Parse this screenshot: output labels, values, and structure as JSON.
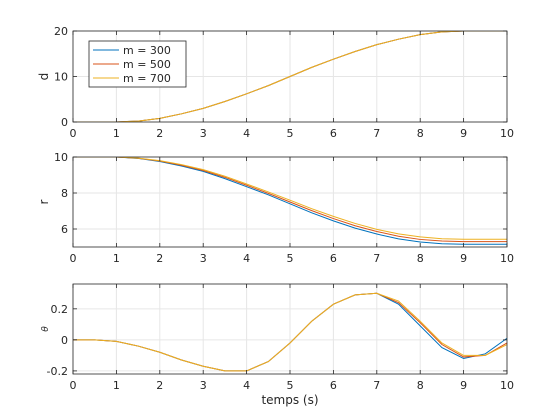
{
  "chart_data": [
    {
      "type": "line",
      "ylabel": "d",
      "xlabel": "",
      "xlim": [
        0,
        10
      ],
      "ylim": [
        0,
        20
      ],
      "xticks": [
        "0",
        "1",
        "2",
        "3",
        "4",
        "5",
        "6",
        "7",
        "8",
        "9",
        "10"
      ],
      "yticks": [
        "0",
        "10",
        "20"
      ],
      "grid": true,
      "legend": {
        "placement": "top-left",
        "entries": [
          "m = 300",
          "m = 500",
          "m = 700"
        ]
      },
      "x": [
        0,
        0.5,
        1,
        1.5,
        2,
        2.5,
        3,
        3.5,
        4,
        4.5,
        5,
        5.5,
        6,
        6.5,
        7,
        7.5,
        8,
        8.5,
        9,
        9.5,
        10
      ],
      "series": [
        {
          "name": "m = 300",
          "color": "#0072bd",
          "values": [
            0,
            0,
            0,
            0.2,
            0.8,
            1.8,
            3.0,
            4.5,
            6.2,
            8.0,
            10.0,
            12.0,
            13.8,
            15.5,
            17.0,
            18.2,
            19.2,
            19.8,
            20,
            20,
            20
          ]
        },
        {
          "name": "m = 500",
          "color": "#d95319",
          "values": [
            0,
            0,
            0,
            0.2,
            0.8,
            1.8,
            3.0,
            4.5,
            6.2,
            8.0,
            10.0,
            12.0,
            13.8,
            15.5,
            17.0,
            18.2,
            19.2,
            19.8,
            20,
            20,
            20
          ]
        },
        {
          "name": "m = 700",
          "color": "#edb120",
          "values": [
            0,
            0,
            0,
            0.2,
            0.8,
            1.8,
            3.0,
            4.5,
            6.2,
            8.0,
            10.0,
            12.0,
            13.8,
            15.5,
            17.0,
            18.2,
            19.2,
            19.8,
            20,
            20,
            20
          ]
        }
      ]
    },
    {
      "type": "line",
      "ylabel": "r",
      "xlabel": "",
      "xlim": [
        0,
        10
      ],
      "ylim": [
        5,
        10
      ],
      "xticks": [
        "0",
        "1",
        "2",
        "3",
        "4",
        "5",
        "6",
        "7",
        "8",
        "9",
        "10"
      ],
      "yticks": [
        "6",
        "8",
        "10"
      ],
      "grid": true,
      "x": [
        0,
        0.5,
        1,
        1.5,
        2,
        2.5,
        3,
        3.5,
        4,
        4.5,
        5,
        5.5,
        6,
        6.5,
        7,
        7.5,
        8,
        8.5,
        9,
        9.5,
        10
      ],
      "series": [
        {
          "name": "m = 300",
          "color": "#0072bd",
          "values": [
            10,
            10,
            10,
            9.92,
            9.75,
            9.5,
            9.2,
            8.8,
            8.35,
            7.9,
            7.4,
            6.9,
            6.45,
            6.05,
            5.72,
            5.45,
            5.28,
            5.18,
            5.15,
            5.15,
            5.15
          ]
        },
        {
          "name": "m = 500",
          "color": "#d95319",
          "values": [
            10,
            10,
            10,
            9.93,
            9.78,
            9.54,
            9.25,
            8.87,
            8.43,
            7.98,
            7.5,
            7.02,
            6.58,
            6.18,
            5.86,
            5.6,
            5.42,
            5.33,
            5.3,
            5.3,
            5.3
          ]
        },
        {
          "name": "m = 700",
          "color": "#edb120",
          "values": [
            10,
            10,
            10,
            9.94,
            9.8,
            9.58,
            9.3,
            8.93,
            8.5,
            8.06,
            7.6,
            7.13,
            6.7,
            6.31,
            5.98,
            5.73,
            5.56,
            5.46,
            5.43,
            5.43,
            5.43
          ]
        }
      ]
    },
    {
      "type": "line",
      "ylabel": "θ",
      "xlabel": "temps (s)",
      "xlim": [
        0,
        10
      ],
      "ylim": [
        -0.22,
        0.36
      ],
      "xticks": [
        "0",
        "1",
        "2",
        "3",
        "4",
        "5",
        "6",
        "7",
        "8",
        "9",
        "10"
      ],
      "yticks": [
        "-0.2",
        "0",
        "0.2"
      ],
      "grid": true,
      "x": [
        0,
        0.5,
        1,
        1.5,
        2,
        2.5,
        3,
        3.5,
        4,
        4.5,
        5,
        5.5,
        6,
        6.5,
        7,
        7.5,
        8,
        8.5,
        9,
        9.5,
        10
      ],
      "series": [
        {
          "name": "m = 300",
          "color": "#0072bd",
          "values": [
            0,
            0,
            -0.01,
            -0.04,
            -0.08,
            -0.13,
            -0.17,
            -0.2,
            -0.2,
            -0.14,
            -0.02,
            0.12,
            0.23,
            0.29,
            0.3,
            0.23,
            0.09,
            -0.05,
            -0.12,
            -0.09,
            0.01
          ]
        },
        {
          "name": "m = 500",
          "color": "#d95319",
          "values": [
            0,
            0,
            -0.01,
            -0.04,
            -0.08,
            -0.13,
            -0.17,
            -0.2,
            -0.2,
            -0.14,
            -0.02,
            0.12,
            0.23,
            0.29,
            0.3,
            0.24,
            0.11,
            -0.03,
            -0.11,
            -0.1,
            -0.02
          ]
        },
        {
          "name": "m = 700",
          "color": "#edb120",
          "values": [
            0,
            0,
            -0.01,
            -0.04,
            -0.08,
            -0.13,
            -0.17,
            -0.2,
            -0.2,
            -0.14,
            -0.02,
            0.12,
            0.23,
            0.29,
            0.3,
            0.25,
            0.12,
            -0.02,
            -0.1,
            -0.1,
            -0.03
          ]
        }
      ]
    }
  ]
}
